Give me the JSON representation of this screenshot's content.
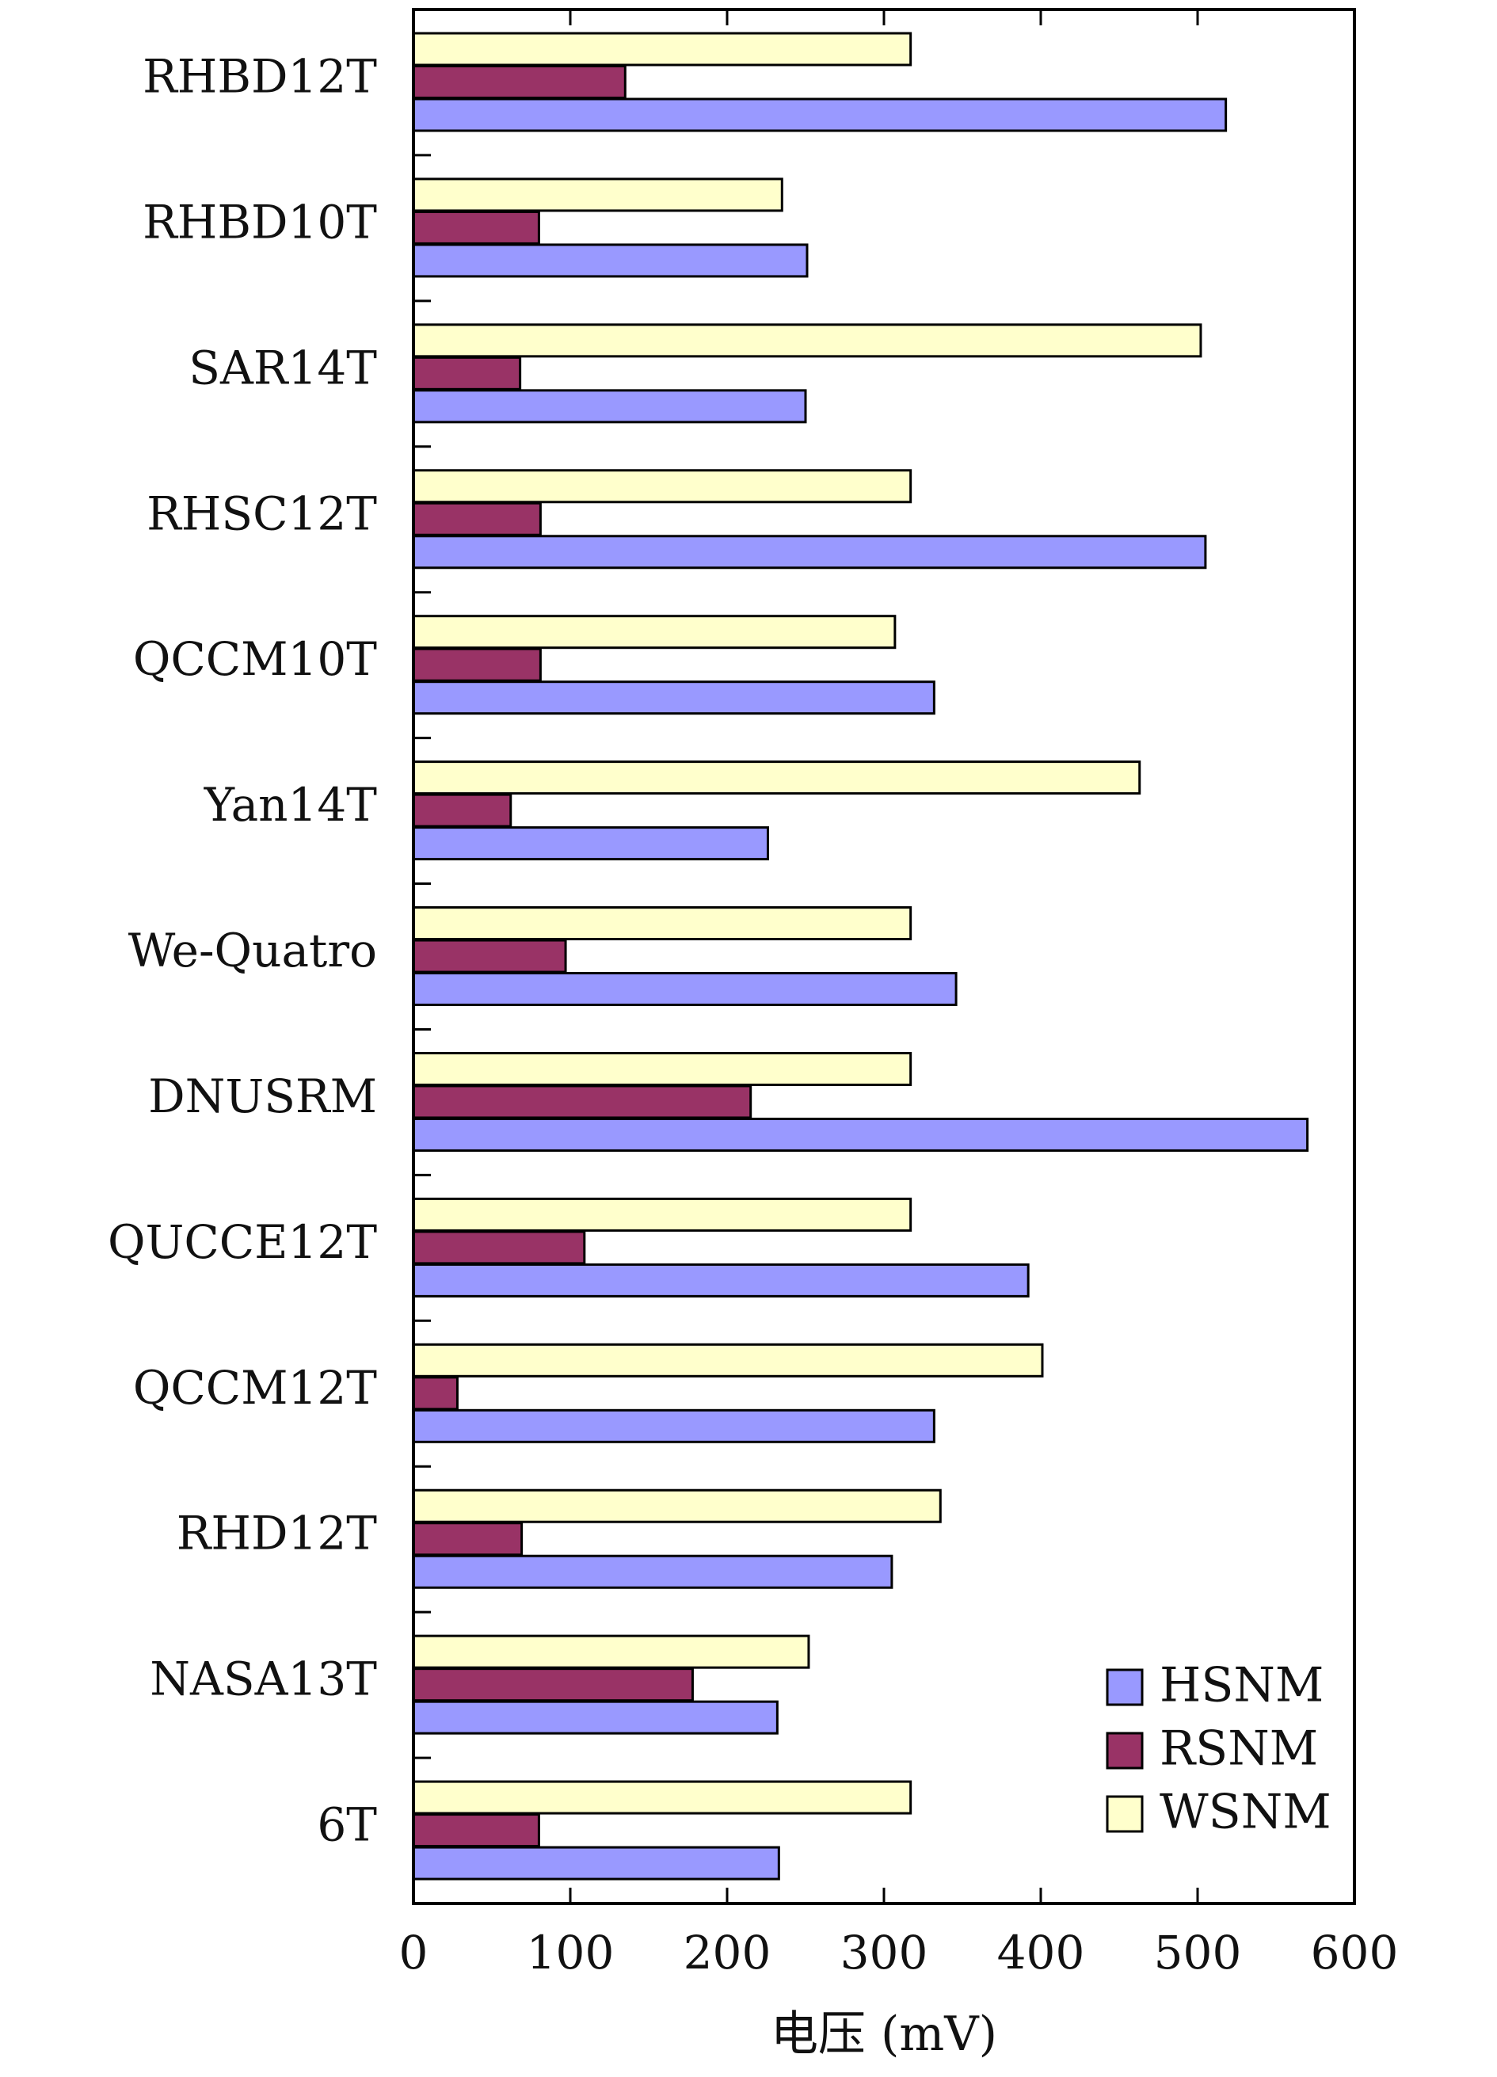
{
  "chart_data": {
    "type": "bar",
    "orientation": "horizontal",
    "categories": [
      "RHBD12T",
      "RHBD10T",
      "SAR14T",
      "RHSC12T",
      "QCCM10T",
      "Yan14T",
      "We-Quatro",
      "DNUSRM",
      "QUCCE12T",
      "QCCM12T",
      "RHD12T",
      "NASA13T",
      "6T"
    ],
    "series": [
      {
        "name": "HSNM",
        "color": "#9999ff",
        "values": [
          518,
          251,
          250,
          505,
          332,
          226,
          346,
          570,
          392,
          332,
          305,
          232,
          233
        ]
      },
      {
        "name": "RSNM",
        "color": "#993366",
        "values": [
          135,
          80,
          68,
          81,
          81,
          62,
          97,
          215,
          109,
          28,
          69,
          178,
          80
        ]
      },
      {
        "name": "WSNM",
        "color": "#ffffcc",
        "values": [
          317,
          235,
          502,
          317,
          307,
          463,
          317,
          317,
          317,
          401,
          336,
          252,
          317
        ]
      }
    ],
    "xlabel": "电压 (mV)",
    "xlim": [
      0,
      600
    ],
    "xticks": [
      "0",
      "100",
      "200",
      "300",
      "400",
      "500",
      "600"
    ],
    "grid": false,
    "legend_position": "bottom-right"
  }
}
